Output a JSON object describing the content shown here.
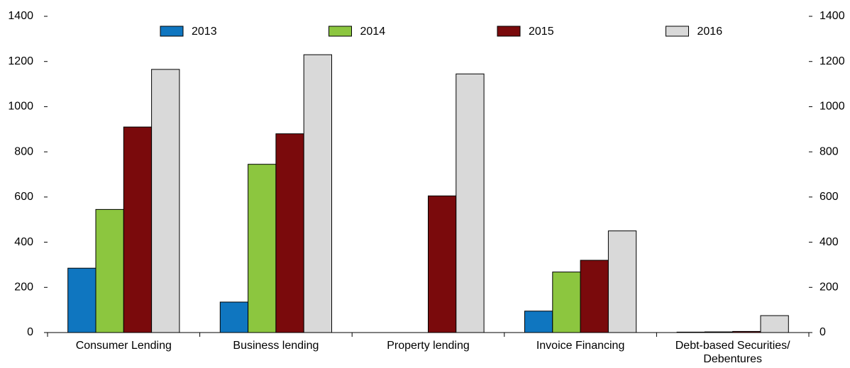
{
  "chart_data": {
    "type": "bar",
    "categories": [
      "Consumer Lending",
      "Business lending",
      "Property lending",
      "Invoice Financing",
      "Debt-based Securities/ Debentures"
    ],
    "series": [
      {
        "name": "2013",
        "color": "#0f76c0",
        "values": [
          285,
          135,
          0,
          95,
          2
        ]
      },
      {
        "name": "2014",
        "color": "#8cc63f",
        "values": [
          545,
          745,
          0,
          268,
          3
        ]
      },
      {
        "name": "2015",
        "color": "#7a0a0c",
        "values": [
          910,
          880,
          605,
          320,
          5
        ]
      },
      {
        "name": "2016",
        "color": "#d9d9d9",
        "values": [
          1165,
          1230,
          1145,
          450,
          75
        ]
      }
    ],
    "ylim": [
      0,
      1400
    ],
    "yticks": [
      0,
      200,
      400,
      600,
      800,
      1000,
      1200,
      1400
    ],
    "y2lim": [
      0,
      1400
    ],
    "y2ticks": [
      0,
      200,
      400,
      600,
      800,
      1000,
      1200,
      1400
    ],
    "legend": "top"
  }
}
